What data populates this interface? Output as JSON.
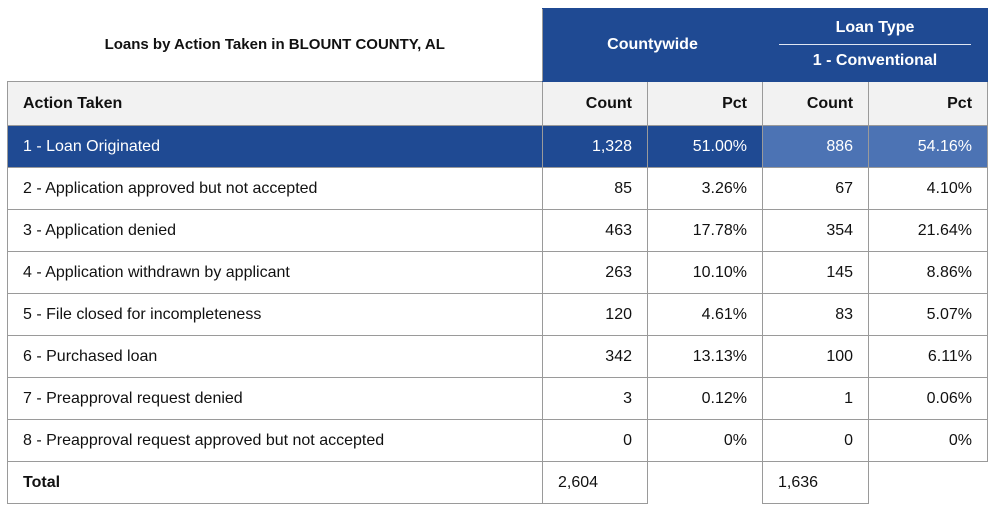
{
  "title": "Loans by Action Taken in BLOUNT COUNTY, AL",
  "groups": {
    "countywide": "Countywide",
    "loan_type_label": "Loan Type",
    "loan_type_value": "1 - Conventional"
  },
  "columns": {
    "action": "Action Taken",
    "count": "Count",
    "pct": "Pct"
  },
  "rows": [
    {
      "action": "1 - Loan Originated",
      "cw_count": "1,328",
      "cw_pct": "51.00%",
      "lt_count": "886",
      "lt_pct": "54.16%"
    },
    {
      "action": "2 - Application approved but not accepted",
      "cw_count": "85",
      "cw_pct": "3.26%",
      "lt_count": "67",
      "lt_pct": "4.10%"
    },
    {
      "action": "3 - Application denied",
      "cw_count": "463",
      "cw_pct": "17.78%",
      "lt_count": "354",
      "lt_pct": "21.64%"
    },
    {
      "action": "4 - Application withdrawn by applicant",
      "cw_count": "263",
      "cw_pct": "10.10%",
      "lt_count": "145",
      "lt_pct": "8.86%"
    },
    {
      "action": "5 - File closed for incompleteness",
      "cw_count": "120",
      "cw_pct": "4.61%",
      "lt_count": "83",
      "lt_pct": "5.07%"
    },
    {
      "action": "6 - Purchased loan",
      "cw_count": "342",
      "cw_pct": "13.13%",
      "lt_count": "100",
      "lt_pct": "6.11%"
    },
    {
      "action": "7 - Preapproval request denied",
      "cw_count": "3",
      "cw_pct": "0.12%",
      "lt_count": "1",
      "lt_pct": "0.06%"
    },
    {
      "action": "8 - Preapproval request approved but not accepted",
      "cw_count": "0",
      "cw_pct": "0%",
      "lt_count": "0",
      "lt_pct": "0%"
    }
  ],
  "total": {
    "label": "Total",
    "cw_count": "2,604",
    "lt_count": "1,636"
  },
  "colors": {
    "header_blue": "#1f4a93",
    "highlight_light_blue": "#4c73b4",
    "header_row_gray": "#f2f2f2"
  }
}
